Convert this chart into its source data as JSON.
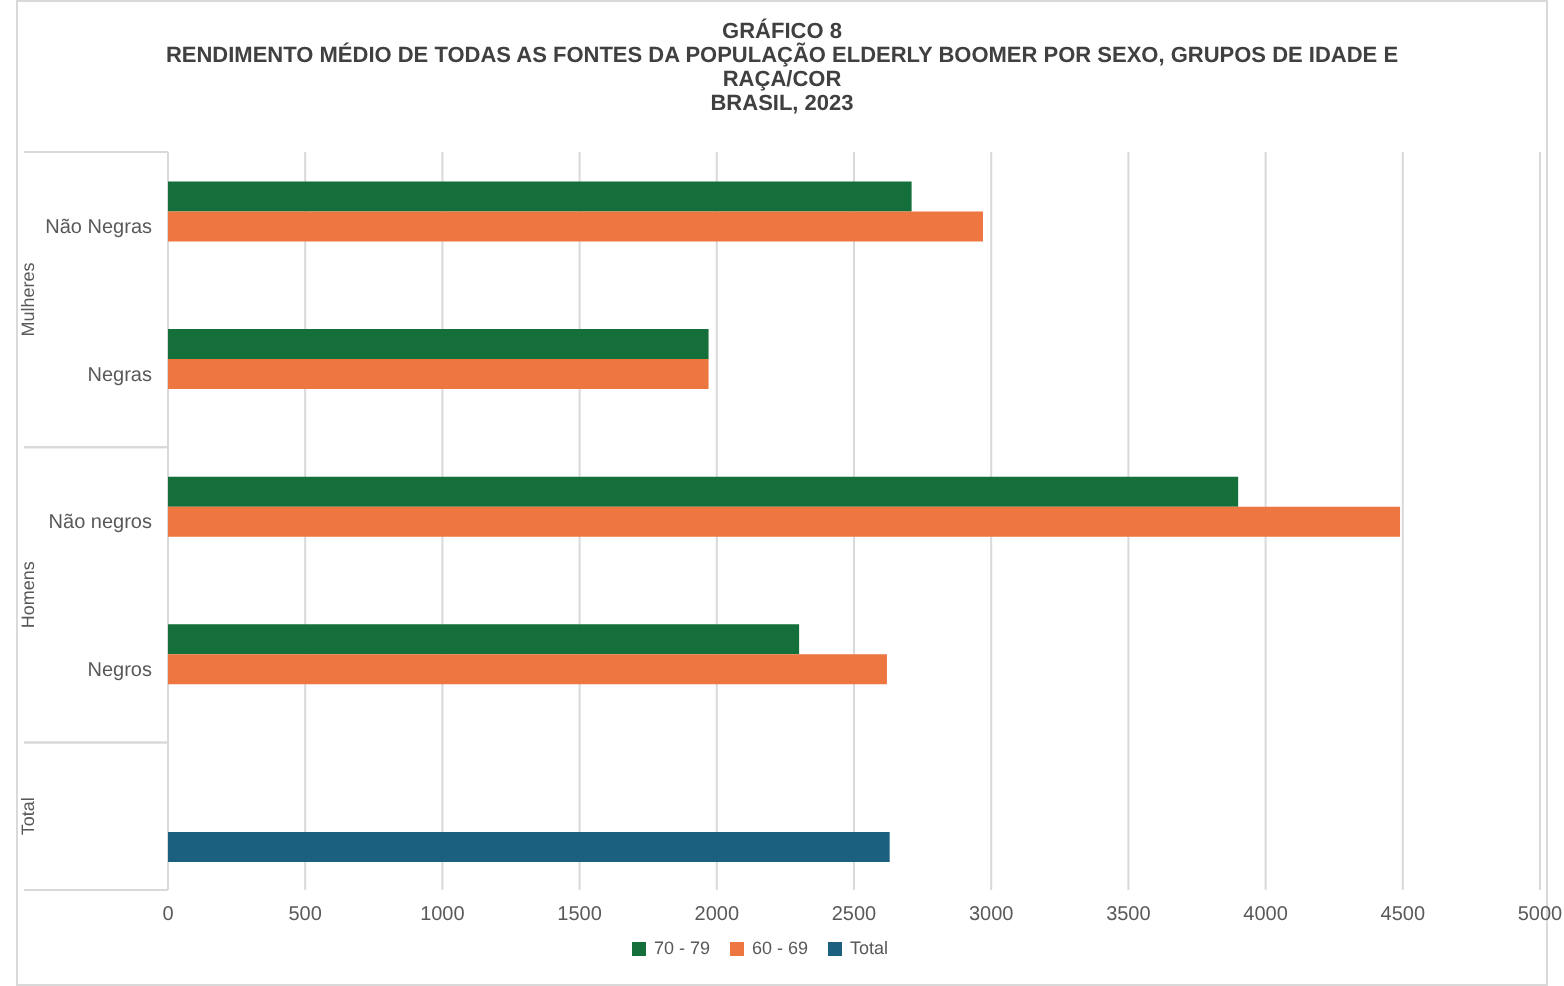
{
  "chart_data": {
    "type": "bar",
    "orientation": "horizontal",
    "title": "GRÁFICO 8\nRENDIMENTO MÉDIO DE TODAS AS FONTES DA POPULAÇÃO  ELDERLY BOOMER POR SEXO, GRUPOS DE IDADE E RAÇA/COR",
    "subtitle": "BRASIL, 2023",
    "categories": [
      "Não Negras",
      "Negras",
      "Não negros",
      "Negros",
      null
    ],
    "annotations": [
      "Mulheres",
      "Homens",
      "Total"
    ],
    "series": [
      {
        "name": "70 - 79",
        "color": "#156f3a",
        "values": [
          2710,
          1970,
          3900,
          2300,
          null
        ]
      },
      {
        "name": "60 - 69",
        "color": "#ee7640",
        "values": [
          2970,
          1970,
          4490,
          2620,
          null
        ]
      },
      {
        "name": "Total",
        "color": "#1c6080",
        "values": [
          null,
          null,
          null,
          null,
          2630
        ]
      }
    ],
    "xlim": [
      0,
      5000
    ],
    "xticks": [
      0,
      500,
      1000,
      1500,
      2000,
      2500,
      3000,
      3500,
      4000,
      4500,
      5000
    ],
    "grid": "x",
    "legend": "bottom"
  }
}
